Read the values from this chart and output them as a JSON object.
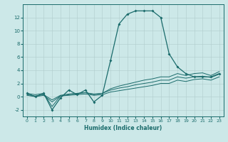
{
  "xlabel": "Humidex (Indice chaleur)",
  "bg_color": "#cce8e8",
  "grid_color": "#b0cccc",
  "line_color": "#1a6b6b",
  "xlim": [
    -0.5,
    23.5
  ],
  "ylim": [
    -3.0,
    14.0
  ],
  "xticks": [
    0,
    1,
    2,
    3,
    4,
    5,
    6,
    7,
    8,
    9,
    10,
    11,
    12,
    13,
    14,
    15,
    16,
    17,
    18,
    19,
    20,
    21,
    22,
    23
  ],
  "yticks": [
    -2,
    0,
    2,
    4,
    6,
    8,
    10,
    12
  ],
  "series": {
    "line1_x": [
      0,
      1,
      2,
      3,
      4,
      5,
      6,
      7,
      8,
      9,
      10,
      11,
      12,
      13,
      14,
      15,
      16,
      17,
      18,
      19,
      20,
      21,
      22,
      23
    ],
    "line1_y": [
      0.5,
      0.0,
      0.5,
      -2.0,
      -0.2,
      1.0,
      0.3,
      1.0,
      -0.8,
      0.2,
      5.5,
      11.0,
      12.5,
      13.0,
      13.0,
      13.0,
      12.0,
      6.5,
      4.5,
      3.5,
      3.0,
      3.0,
      3.0,
      3.5
    ],
    "line2_x": [
      0,
      1,
      2,
      3,
      4,
      5,
      6,
      7,
      8,
      9,
      10,
      11,
      12,
      13,
      14,
      15,
      16,
      17,
      18,
      19,
      20,
      21,
      22,
      23
    ],
    "line2_y": [
      0.5,
      0.3,
      0.5,
      -1.5,
      0.1,
      0.3,
      0.5,
      0.6,
      0.3,
      0.5,
      1.2,
      1.6,
      1.9,
      2.2,
      2.5,
      2.7,
      3.0,
      3.0,
      3.5,
      3.2,
      3.5,
      3.6,
      3.2,
      3.8
    ],
    "line3_x": [
      0,
      1,
      2,
      3,
      4,
      5,
      6,
      7,
      8,
      9,
      10,
      11,
      12,
      13,
      14,
      15,
      16,
      17,
      18,
      19,
      20,
      21,
      22,
      23
    ],
    "line3_y": [
      0.3,
      0.1,
      0.3,
      -0.5,
      0.2,
      0.4,
      0.5,
      0.6,
      0.4,
      0.5,
      1.0,
      1.3,
      1.5,
      1.8,
      2.0,
      2.2,
      2.5,
      2.5,
      3.0,
      2.8,
      3.0,
      3.1,
      2.9,
      3.4
    ],
    "line4_x": [
      0,
      1,
      2,
      3,
      4,
      5,
      6,
      7,
      8,
      9,
      10,
      11,
      12,
      13,
      14,
      15,
      16,
      17,
      18,
      19,
      20,
      21,
      22,
      23
    ],
    "line4_y": [
      0.2,
      0.0,
      0.2,
      -0.8,
      0.1,
      0.2,
      0.3,
      0.4,
      0.2,
      0.3,
      0.7,
      0.9,
      1.1,
      1.3,
      1.5,
      1.7,
      2.0,
      2.0,
      2.5,
      2.3,
      2.6,
      2.7,
      2.5,
      3.0
    ]
  }
}
